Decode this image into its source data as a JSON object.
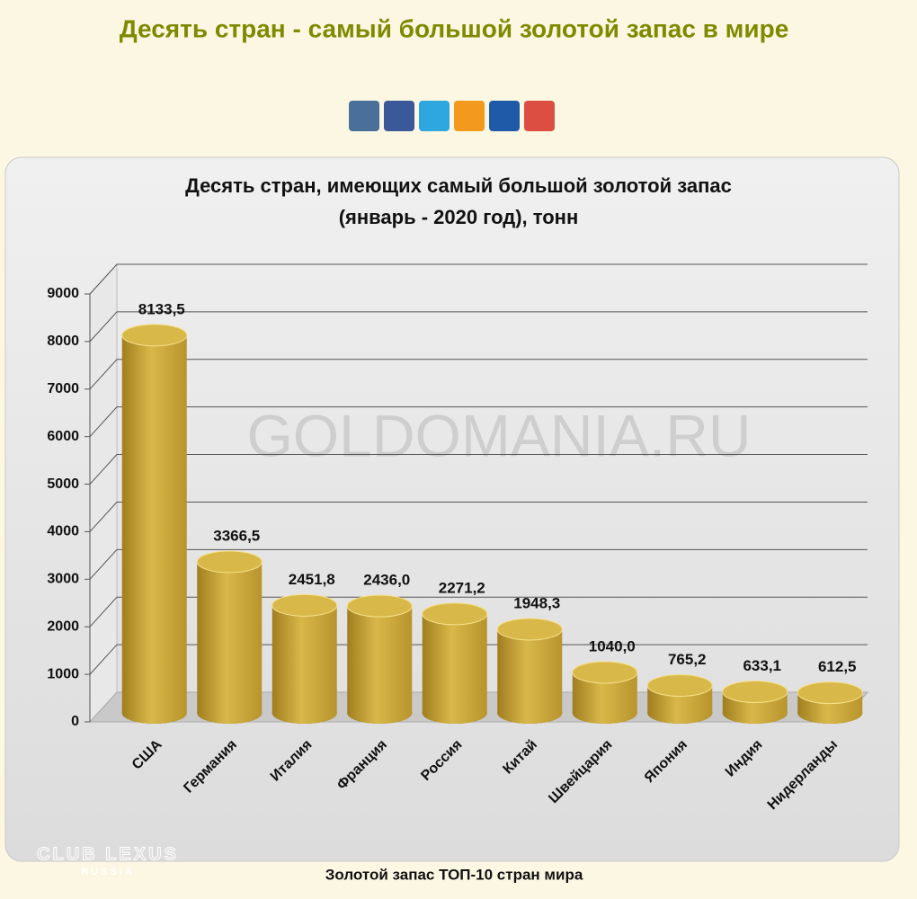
{
  "page": {
    "title": "Десять стран - самый большой золотой запас в мире",
    "caption": "Золотой запас ТОП-10 стран мира",
    "watermark": "GOLDOMANIA.RU",
    "logo": [
      "CLUB LEXUS",
      "RUSSIA"
    ]
  },
  "chart_data": {
    "type": "bar",
    "title": "Десять стран, имеющих самый большой золотой запас",
    "subtitle": "(январь  - 2020 год), тонн",
    "categories": [
      "США",
      "Германия",
      "Италия",
      "Франция",
      "Россия",
      "Китай",
      "Швейцария",
      "Япония",
      "Индия",
      "Нидерланды"
    ],
    "values": [
      8133.5,
      3366.5,
      2451.8,
      2436.0,
      2271.2,
      1948.3,
      1040.0,
      765.2,
      633.1,
      612.5
    ],
    "value_labels": [
      "8133,5",
      "3366,5",
      "2451,8",
      "2436,0",
      "2271,2",
      "1948,3",
      "1040,0",
      "765,2",
      "633,1",
      "612,5"
    ],
    "color": "#d9b84a",
    "ylim": [
      0,
      9000
    ],
    "yticks": [
      0,
      1000,
      2000,
      3000,
      4000,
      5000,
      6000,
      7000,
      8000,
      9000
    ],
    "grid": true
  }
}
